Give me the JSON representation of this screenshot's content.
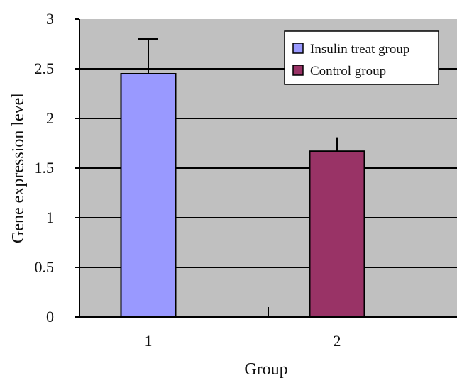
{
  "chart_data": {
    "type": "bar",
    "title": "",
    "xlabel": "Group",
    "ylabel": "Gene expression level",
    "ylim": [
      0,
      3
    ],
    "yticks": [
      0,
      0.5,
      1,
      1.5,
      2,
      2.5,
      3
    ],
    "ytick_labels": [
      "0",
      "0.5",
      "1",
      "1.5",
      "2",
      "2.5",
      "3"
    ],
    "grid": "horizontal",
    "legend_position": "top-right",
    "categories": [
      "1",
      "2"
    ],
    "series": [
      {
        "name": "Insulin treat group",
        "color": "#9999FF",
        "values": [
          2.45,
          null
        ],
        "error": [
          0.35,
          null
        ]
      },
      {
        "name": "Control group",
        "color": "#993366",
        "values": [
          null,
          1.67
        ],
        "error": [
          null,
          0.14
        ]
      }
    ],
    "plot_background": "#C0C0C0"
  }
}
